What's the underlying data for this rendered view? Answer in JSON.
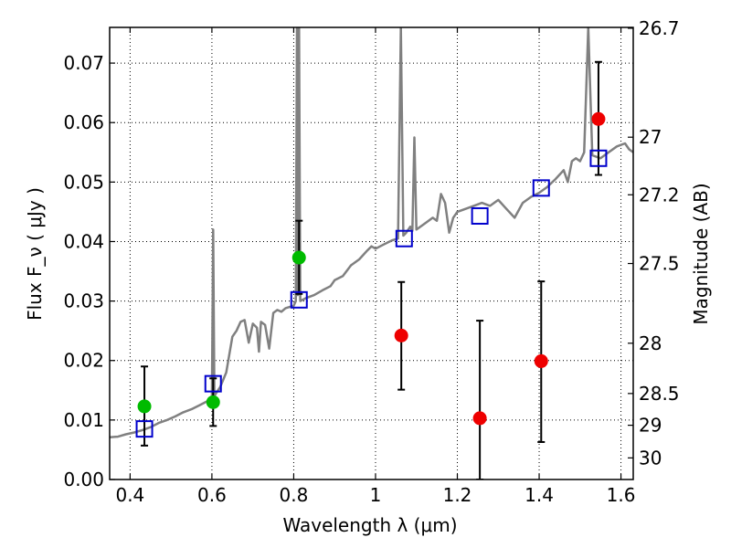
{
  "chart_data": {
    "type": "scatter",
    "xlabel": "Wavelength  λ (μm)",
    "ylabel": "Flux  F_ν  ( μJy )",
    "ylabel_right": "Magnitude (AB)",
    "xlim": [
      0.35,
      1.63
    ],
    "ylim": [
      0.0,
      0.076
    ],
    "grid": true,
    "x_ticks": [
      0.4,
      0.6,
      0.8,
      1.0,
      1.2,
      1.4,
      1.6
    ],
    "x_tick_labels": [
      "0.4",
      "0.6",
      "0.8",
      "1",
      "1.2",
      "1.4",
      "1.6"
    ],
    "y_ticks": [
      0.0,
      0.01,
      0.02,
      0.03,
      0.04,
      0.05,
      0.06,
      0.07
    ],
    "y_tick_labels": [
      "0.00",
      "0.01",
      "0.02",
      "0.03",
      "0.04",
      "0.05",
      "0.06",
      "0.07"
    ],
    "right_ticks": [
      {
        "label": "26.7",
        "mag": 26.7
      },
      {
        "label": "27",
        "mag": 27.0
      },
      {
        "label": "27.2",
        "mag": 27.2
      },
      {
        "label": "27.5",
        "mag": 27.5
      },
      {
        "label": "28",
        "mag": 28.0
      },
      {
        "label": "28.5",
        "mag": 28.5
      },
      {
        "label": "29",
        "mag": 29.0
      },
      {
        "label": "30",
        "mag": 30.0
      }
    ],
    "series": [
      {
        "kind": "line",
        "color": "#808080",
        "points": [
          [
            0.35,
            0.0071
          ],
          [
            0.37,
            0.0072
          ],
          [
            0.39,
            0.0076
          ],
          [
            0.41,
            0.0079
          ],
          [
            0.43,
            0.0083
          ],
          [
            0.45,
            0.0088
          ],
          [
            0.47,
            0.0095
          ],
          [
            0.49,
            0.01
          ],
          [
            0.51,
            0.0106
          ],
          [
            0.53,
            0.0113
          ],
          [
            0.55,
            0.0118
          ],
          [
            0.57,
            0.0125
          ],
          [
            0.59,
            0.0132
          ],
          [
            0.6,
            0.0135
          ],
          [
            0.603,
            0.042
          ],
          [
            0.606,
            0.014
          ],
          [
            0.61,
            0.0145
          ],
          [
            0.62,
            0.0155
          ],
          [
            0.635,
            0.018
          ],
          [
            0.65,
            0.024
          ],
          [
            0.66,
            0.025
          ],
          [
            0.67,
            0.0265
          ],
          [
            0.68,
            0.0268
          ],
          [
            0.69,
            0.023
          ],
          [
            0.7,
            0.0262
          ],
          [
            0.71,
            0.0255
          ],
          [
            0.715,
            0.0215
          ],
          [
            0.72,
            0.0265
          ],
          [
            0.73,
            0.026
          ],
          [
            0.74,
            0.022
          ],
          [
            0.75,
            0.028
          ],
          [
            0.76,
            0.0285
          ],
          [
            0.77,
            0.0282
          ],
          [
            0.78,
            0.0288
          ],
          [
            0.79,
            0.029
          ],
          [
            0.8,
            0.0292
          ],
          [
            0.805,
            0.03
          ],
          [
            0.808,
            0.076
          ],
          [
            0.81,
            0.031
          ],
          [
            0.813,
            0.076
          ],
          [
            0.816,
            0.03
          ],
          [
            0.83,
            0.0305
          ],
          [
            0.85,
            0.031
          ],
          [
            0.87,
            0.0318
          ],
          [
            0.89,
            0.0325
          ],
          [
            0.9,
            0.0335
          ],
          [
            0.92,
            0.0342
          ],
          [
            0.94,
            0.036
          ],
          [
            0.96,
            0.037
          ],
          [
            0.98,
            0.0385
          ],
          [
            0.99,
            0.0392
          ],
          [
            1.0,
            0.0388
          ],
          [
            1.02,
            0.0395
          ],
          [
            1.04,
            0.0402
          ],
          [
            1.055,
            0.0405
          ],
          [
            1.062,
            0.076
          ],
          [
            1.068,
            0.041
          ],
          [
            1.075,
            0.0415
          ],
          [
            1.085,
            0.0425
          ],
          [
            1.09,
            0.0418
          ],
          [
            1.095,
            0.0575
          ],
          [
            1.1,
            0.042
          ],
          [
            1.12,
            0.043
          ],
          [
            1.14,
            0.044
          ],
          [
            1.15,
            0.0435
          ],
          [
            1.16,
            0.048
          ],
          [
            1.17,
            0.0465
          ],
          [
            1.18,
            0.0415
          ],
          [
            1.19,
            0.044
          ],
          [
            1.2,
            0.045
          ],
          [
            1.22,
            0.0455
          ],
          [
            1.24,
            0.046
          ],
          [
            1.26,
            0.0465
          ],
          [
            1.28,
            0.046
          ],
          [
            1.3,
            0.047
          ],
          [
            1.32,
            0.0455
          ],
          [
            1.34,
            0.044
          ],
          [
            1.36,
            0.0465
          ],
          [
            1.38,
            0.0475
          ],
          [
            1.4,
            0.0482
          ],
          [
            1.42,
            0.0492
          ],
          [
            1.44,
            0.0505
          ],
          [
            1.46,
            0.052
          ],
          [
            1.47,
            0.05
          ],
          [
            1.48,
            0.0535
          ],
          [
            1.49,
            0.054
          ],
          [
            1.5,
            0.0535
          ],
          [
            1.51,
            0.055
          ],
          [
            1.52,
            0.076
          ],
          [
            1.53,
            0.0545
          ],
          [
            1.55,
            0.054
          ],
          [
            1.57,
            0.055
          ],
          [
            1.59,
            0.056
          ],
          [
            1.61,
            0.0565
          ],
          [
            1.62,
            0.0555
          ],
          [
            1.63,
            0.055
          ]
        ]
      },
      {
        "kind": "markers",
        "marker": "circle",
        "color": "#00bb00",
        "points": [
          {
            "x": 0.435,
            "y": 0.0123,
            "ylo": 0.0057,
            "yhi": 0.019
          },
          {
            "x": 0.603,
            "y": 0.013,
            "ylo": 0.009,
            "yhi": 0.017
          },
          {
            "x": 0.813,
            "y": 0.0373,
            "ylo": 0.0312,
            "yhi": 0.0435
          }
        ]
      },
      {
        "kind": "markers",
        "marker": "circle",
        "color": "#ee0000",
        "points": [
          {
            "x": 1.063,
            "y": 0.0242,
            "ylo": 0.0151,
            "yhi": 0.0332
          },
          {
            "x": 1.255,
            "y": 0.0103,
            "ylo": 0.0,
            "yhi": 0.0267
          },
          {
            "x": 1.405,
            "y": 0.0199,
            "ylo": 0.0063,
            "yhi": 0.0333
          },
          {
            "x": 1.545,
            "y": 0.0606,
            "ylo": 0.0512,
            "yhi": 0.0702
          }
        ]
      },
      {
        "kind": "markers",
        "marker": "open-square",
        "color": "#0000cc",
        "points": [
          {
            "x": 0.435,
            "y": 0.0085
          },
          {
            "x": 0.603,
            "y": 0.0161
          },
          {
            "x": 0.813,
            "y": 0.0302
          },
          {
            "x": 1.07,
            "y": 0.0405
          },
          {
            "x": 1.255,
            "y": 0.0443
          },
          {
            "x": 1.405,
            "y": 0.049
          },
          {
            "x": 1.545,
            "y": 0.054
          }
        ]
      }
    ]
  }
}
